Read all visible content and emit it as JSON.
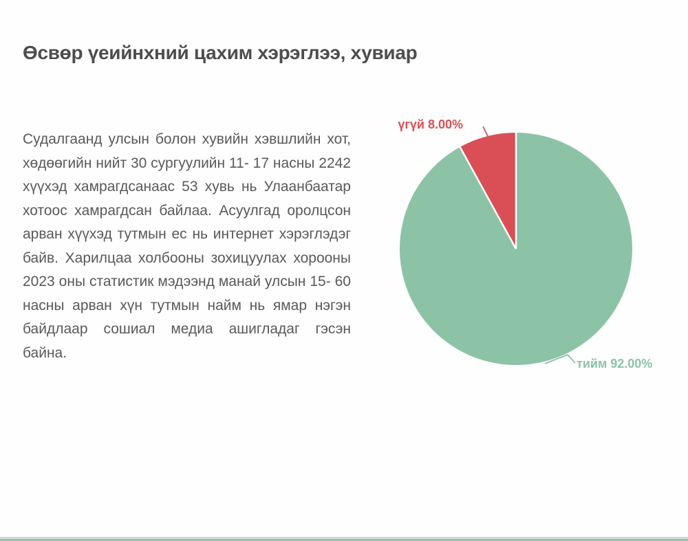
{
  "page": {
    "title": "Өсвөр үеийнхний цахим хэрэглээ, хувиар"
  },
  "article": {
    "paragraph": "Судалгаанд улсын болон хувийн хэвшлийн хот, хөдөөгийн нийт 30 сургуулийн 11- 17 насны 2242 хүүхэд хамрагдсанаас 53 хувь нь Улаанбаатар хотоос хамрагдсан байлаа. Асуулгад оролцсон арван хүүхэд тутмын ес нь интернет хэрэглэдэг байв. Харилцаа холбооны зохицуулах хорооны 2023 оны статистик мэдээнд манай улсын 15- 60 насны арван хүн тутмын найм нь ямар нэгэн байдлаар сошиал медиа ашигладаг гэсэн байна."
  },
  "chart_data": {
    "type": "pie",
    "title": "Өсвөр үеийнхний цахим хэрэглээ, хувиар",
    "categories": [
      "тийм",
      "үгүй"
    ],
    "values": [
      92,
      8
    ],
    "unit": "%",
    "slices": [
      {
        "label": "тийм",
        "value": 92,
        "display": "тийм 92.00%",
        "color": "#8cc3a6"
      },
      {
        "label": "үгүй",
        "value": 8,
        "display": "үгүй 8.00%",
        "color": "#d94f55"
      }
    ],
    "start_angle_deg": 0,
    "direction": "clockwise",
    "labels": "outside with leader lines",
    "legend_position": "none"
  },
  "colors": {
    "title_text": "#4d4d4d",
    "body_text": "#58595b",
    "background": "#fefefe",
    "slice_separator": "#ffffff",
    "footer_bar_light": "#ccdecd",
    "footer_bar_dark": "#a3bfa9"
  }
}
